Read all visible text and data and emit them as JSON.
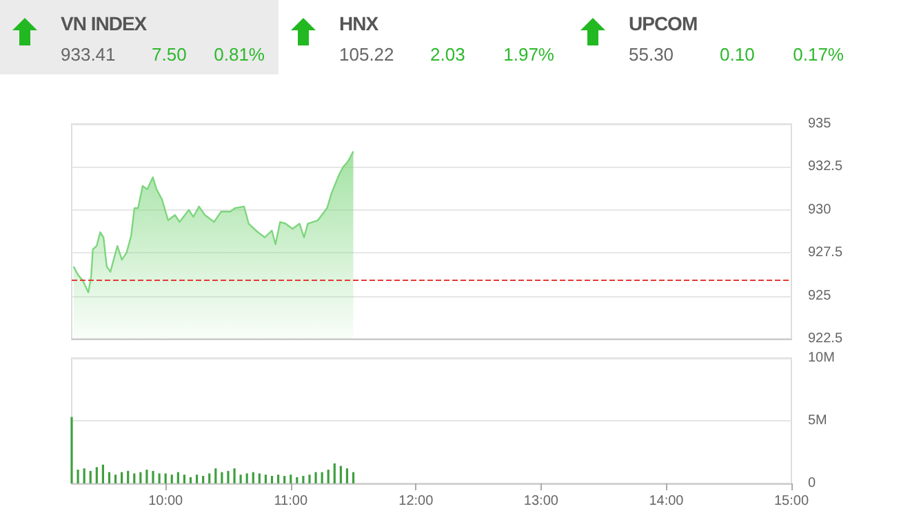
{
  "chart_data": [
    {
      "type": "other",
      "annotations": [
        "VN INDEX",
        "933.41",
        "7.50",
        "0.81%",
        "HNX",
        "105.22",
        "2.03",
        "1.97%",
        "UPCOM",
        "55.30",
        "0.10",
        "0.17%"
      ]
    },
    {
      "type": "area",
      "color": "#7dd67d",
      "marker": "none",
      "grid": "y",
      "tick_labels": "y",
      "x": [
        9.265,
        9.302,
        9.338,
        9.383,
        9.405,
        9.419,
        9.449,
        9.478,
        9.504,
        9.53,
        9.559,
        9.589,
        9.615,
        9.651,
        9.688,
        9.725,
        9.751,
        9.78,
        9.817,
        9.854,
        9.898,
        9.928,
        9.972,
        10.02,
        10.075,
        10.112,
        10.186,
        10.222,
        10.267,
        10.314,
        10.388,
        10.443,
        10.517,
        10.554,
        10.627,
        10.664,
        10.738,
        10.793,
        10.849,
        10.878,
        10.915,
        10.959,
        11.014,
        11.07,
        11.106,
        11.136,
        11.217,
        11.29,
        11.327,
        11.383,
        11.419,
        11.456,
        11.5
      ],
      "values": [
        926.7,
        926.2,
        925.9,
        925.2,
        926.1,
        927.7,
        927.9,
        928.7,
        928.4,
        926.7,
        926.4,
        927.2,
        927.9,
        927.1,
        927.5,
        928.5,
        930.1,
        930.1,
        931.4,
        931.2,
        931.9,
        931.2,
        930.6,
        929.4,
        929.7,
        929.3,
        930.0,
        929.6,
        930.2,
        929.7,
        929.3,
        929.9,
        929.9,
        930.1,
        930.2,
        929.2,
        928.7,
        928.4,
        928.8,
        928.0,
        929.3,
        929.2,
        928.9,
        929.2,
        928.4,
        929.2,
        929.4,
        930.1,
        931.0,
        932.0,
        932.5,
        932.8,
        933.4
      ],
      "xlim": [
        9.25,
        15
      ],
      "ylim": [
        922.5,
        935
      ],
      "yticks": [
        922.5,
        925,
        927.5,
        930,
        932.5,
        935
      ],
      "ref_lines": [
        {
          "axis": "y",
          "value": 925.91,
          "color": "#e53935",
          "line_style": "dashed"
        }
      ]
    },
    {
      "type": "bar",
      "color": "#3f9f3f",
      "grid": "y",
      "x": [
        9.25,
        9.3,
        9.35,
        9.4,
        9.45,
        9.5,
        9.55,
        9.6,
        9.65,
        9.7,
        9.75,
        9.8,
        9.85,
        9.9,
        9.95,
        10.0,
        10.05,
        10.1,
        10.15,
        10.2,
        10.25,
        10.3,
        10.35,
        10.4,
        10.45,
        10.5,
        10.55,
        10.6,
        10.65,
        10.7,
        10.75,
        10.8,
        10.85,
        10.9,
        10.95,
        11.0,
        11.05,
        11.1,
        11.15,
        11.2,
        11.25,
        11.3,
        11.35,
        11.4,
        11.45,
        11.5
      ],
      "values": [
        5.3,
        1.1,
        1.2,
        1.0,
        1.3,
        1.5,
        0.9,
        0.7,
        0.9,
        1.0,
        0.8,
        0.9,
        1.1,
        1.0,
        0.8,
        0.8,
        0.7,
        0.9,
        0.7,
        0.5,
        0.7,
        0.6,
        0.8,
        1.2,
        0.9,
        1.0,
        1.2,
        0.7,
        0.8,
        0.9,
        0.8,
        0.7,
        0.6,
        0.7,
        0.6,
        0.7,
        0.5,
        0.6,
        0.7,
        0.9,
        0.9,
        1.1,
        1.6,
        1.4,
        1.2,
        0.9
      ],
      "xlim": [
        9.25,
        15
      ],
      "xticks": [
        {
          "value": 10,
          "label": "10:00"
        },
        {
          "value": 11,
          "label": "11:00"
        },
        {
          "value": 12,
          "label": "12:00"
        },
        {
          "value": 13,
          "label": "13:00"
        },
        {
          "value": 14,
          "label": "14:00"
        },
        {
          "value": 15,
          "label": "15:00"
        }
      ],
      "ylim": [
        0,
        10
      ],
      "yticks": [
        0,
        {
          "value": 5,
          "label": "5M"
        },
        {
          "value": 10,
          "label": "10M"
        }
      ]
    }
  ]
}
